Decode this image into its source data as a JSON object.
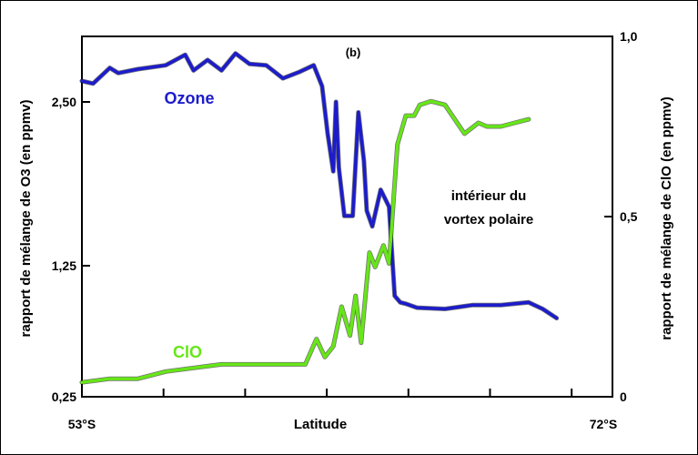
{
  "chart_data": {
    "type": "line",
    "panel_label": "(b)",
    "xlabel": "Latitude",
    "x_tick_labels": [
      "53°S",
      "72°S"
    ],
    "xlim": [
      53,
      72
    ],
    "ylabel_left": "rapport de mélange de O3 (en ppmv)",
    "ylabel_right": "rapport de mélange de ClO (en ppmv)",
    "ylim_left": [
      0.25,
      3.0
    ],
    "ylim_right": [
      0,
      1.0
    ],
    "y_ticks_left": [
      {
        "value": 0.25,
        "label": "0,25"
      },
      {
        "value": 1.25,
        "label": "1,25"
      },
      {
        "value": 2.5,
        "label": "2,50"
      }
    ],
    "y_ticks_right": [
      {
        "value": 0,
        "label": "0"
      },
      {
        "value": 0.5,
        "label": "0,5"
      },
      {
        "value": 1.0,
        "label": "1,0"
      }
    ],
    "annotation": [
      "intérieur du",
      "vortex polaire"
    ],
    "grid": false,
    "series": [
      {
        "name": "Ozone",
        "axis": "left",
        "color": "#1c1ccc",
        "x": [
          53.0,
          53.4,
          54.0,
          54.3,
          55.0,
          56.0,
          56.7,
          57.0,
          57.5,
          58.0,
          58.5,
          59.0,
          59.6,
          60.2,
          60.8,
          61.3,
          61.6,
          61.8,
          62.0,
          62.1,
          62.2,
          62.4,
          62.7,
          62.9,
          63.1,
          63.2,
          63.4,
          63.7,
          64.0,
          64.2,
          64.4,
          64.6,
          65.0,
          66.0,
          67.0,
          68.0,
          69.0,
          69.5,
          70.0
        ],
        "y": [
          2.66,
          2.64,
          2.76,
          2.72,
          2.75,
          2.78,
          2.86,
          2.74,
          2.82,
          2.74,
          2.87,
          2.79,
          2.78,
          2.68,
          2.73,
          2.78,
          2.62,
          2.26,
          1.97,
          2.5,
          2.0,
          1.63,
          1.63,
          2.42,
          2.05,
          1.67,
          1.55,
          1.83,
          1.7,
          1.02,
          0.97,
          0.96,
          0.93,
          0.92,
          0.95,
          0.95,
          0.97,
          0.92,
          0.85
        ]
      },
      {
        "name": "ClO",
        "axis": "right",
        "color": "#66e617",
        "x": [
          53.0,
          54.0,
          55.0,
          56.0,
          57.0,
          58.0,
          59.0,
          60.0,
          61.0,
          61.4,
          61.7,
          62.0,
          62.3,
          62.6,
          62.8,
          63.0,
          63.3,
          63.5,
          63.8,
          64.0,
          64.3,
          64.6,
          64.9,
          65.1,
          65.5,
          66.0,
          66.7,
          67.2,
          67.5,
          68.0,
          68.5,
          69.0
        ],
        "y": [
          0.04,
          0.05,
          0.05,
          0.07,
          0.08,
          0.09,
          0.09,
          0.09,
          0.09,
          0.16,
          0.11,
          0.14,
          0.25,
          0.17,
          0.28,
          0.15,
          0.4,
          0.36,
          0.42,
          0.37,
          0.7,
          0.78,
          0.78,
          0.81,
          0.82,
          0.81,
          0.73,
          0.76,
          0.75,
          0.75,
          0.76,
          0.77
        ]
      }
    ]
  }
}
